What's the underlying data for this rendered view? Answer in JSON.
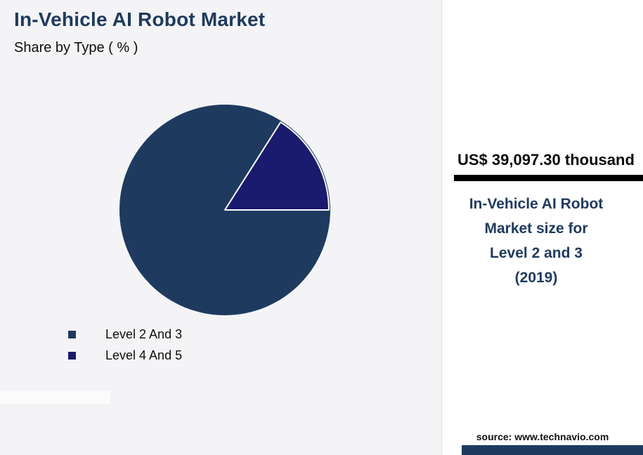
{
  "header": {
    "title": "In-Vehicle AI Robot Market",
    "subtitle": "Share by Type ( % )"
  },
  "chart_data": {
    "type": "pie",
    "title": "In-Vehicle AI Robot Market",
    "subtitle": "Share by Type ( % )",
    "categories": [
      "Level 2 And 3",
      "Level 4 And 5"
    ],
    "values": [
      84,
      16
    ],
    "colors": [
      "#1e3a5f",
      "#1a1a6e"
    ],
    "legend_position": "bottom-left",
    "slice_end_anchor_deg": 90
  },
  "panel": {
    "value_text": "US$ 39,097.30 thousand",
    "description_lines": [
      "In-Vehicle AI Robot",
      "Market size for",
      "Level 2 and 3",
      "(2019)"
    ],
    "source": "source: www.technavio.com"
  },
  "colors": {
    "accent": "#1e3a5f",
    "background": "#f4f4f6",
    "panel_background": "#ffffff",
    "underline_bar": "#000000",
    "text": "#0e0e0e"
  }
}
